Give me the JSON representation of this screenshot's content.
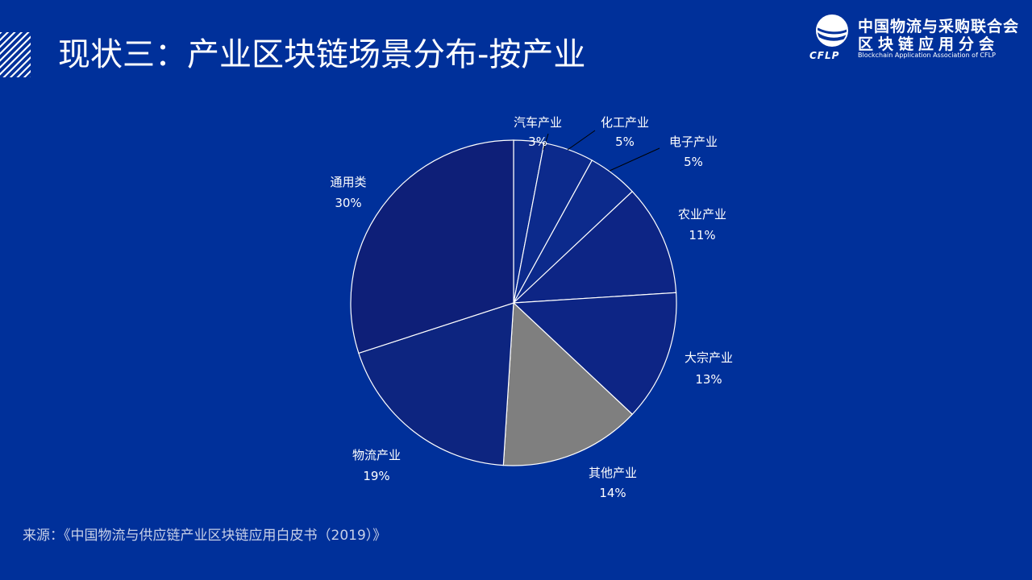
{
  "header": {
    "title": "现状三：产业区块链场景分布-按产业"
  },
  "logo": {
    "line1": "中国物流与采购联合会",
    "line2": "区块链应用分会",
    "abbr": "CFLP",
    "english": "Blockchain Application Association of CFLP"
  },
  "chart_data": {
    "type": "pie",
    "title": "",
    "start": "12 o'clock",
    "direction": "clockwise",
    "slices": [
      {
        "label": "汽车产业",
        "value": 3,
        "value_label": "3%",
        "color": "#0c2a8c",
        "leader": true
      },
      {
        "label": "化工产业",
        "value": 5,
        "value_label": "5%",
        "color": "#0c2a8c",
        "leader": true
      },
      {
        "label": "电子产业",
        "value": 5,
        "value_label": "5%",
        "color": "#0c2a8c",
        "leader": true
      },
      {
        "label": "农业产业",
        "value": 11,
        "value_label": "11%",
        "color": "#0d2585",
        "leader": false
      },
      {
        "label": "大宗产业",
        "value": 13,
        "value_label": "13%",
        "color": "#0d2585",
        "leader": false
      },
      {
        "label": "其他产业",
        "value": 14,
        "value_label": "14%",
        "color": "#7f7f7f",
        "leader": false
      },
      {
        "label": "物流产业",
        "value": 19,
        "value_label": "19%",
        "color": "#0d2580",
        "leader": false
      },
      {
        "label": "通用类",
        "value": 30,
        "value_label": "30%",
        "color": "#0e1f78",
        "leader": false
      }
    ]
  },
  "footer": {
    "source": "来源：《中国物流与供应链产业区块链应用白皮书（2019）》"
  }
}
